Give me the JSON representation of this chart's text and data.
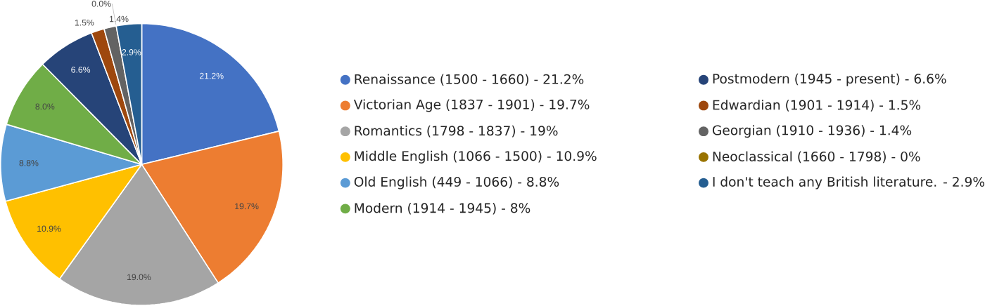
{
  "chart_data": {
    "type": "pie",
    "categories": [
      "Renaissance (1500 - 1660) - 21.2%",
      "Victorian Age (1837 - 1901) - 19.7%",
      "Romantics (1798 - 1837) - 19%",
      "Middle English (1066 - 1500) - 10.9%",
      "Old English (449 - 1066) - 8.8%",
      "Modern (1914 - 1945) - 8%",
      "Postmodern (1945 - present) - 6.6%",
      "Edwardian (1901 - 1914) - 1.5%",
      "Georgian (1910 - 1936) - 1.4%",
      "Neoclassical (1660 - 1798) - 0%",
      "I don't teach any British literature. - 2.9%"
    ],
    "values": [
      21.2,
      19.7,
      19.0,
      10.9,
      8.8,
      8.0,
      6.6,
      1.5,
      1.4,
      0.0,
      2.9
    ],
    "value_labels": [
      "21.2%",
      "19.7%",
      "19.0%",
      "10.9%",
      "8.8%",
      "8.0%",
      "6.6%",
      "1.5%",
      "1.4%",
      "0.0%",
      "2.9%"
    ],
    "colors": [
      "#4472c4",
      "#ed7d31",
      "#a5a5a5",
      "#ffc000",
      "#5b9bd5",
      "#70ad47",
      "#264478",
      "#9e480e",
      "#636363",
      "#997300",
      "#255e91"
    ],
    "legend": "right"
  }
}
